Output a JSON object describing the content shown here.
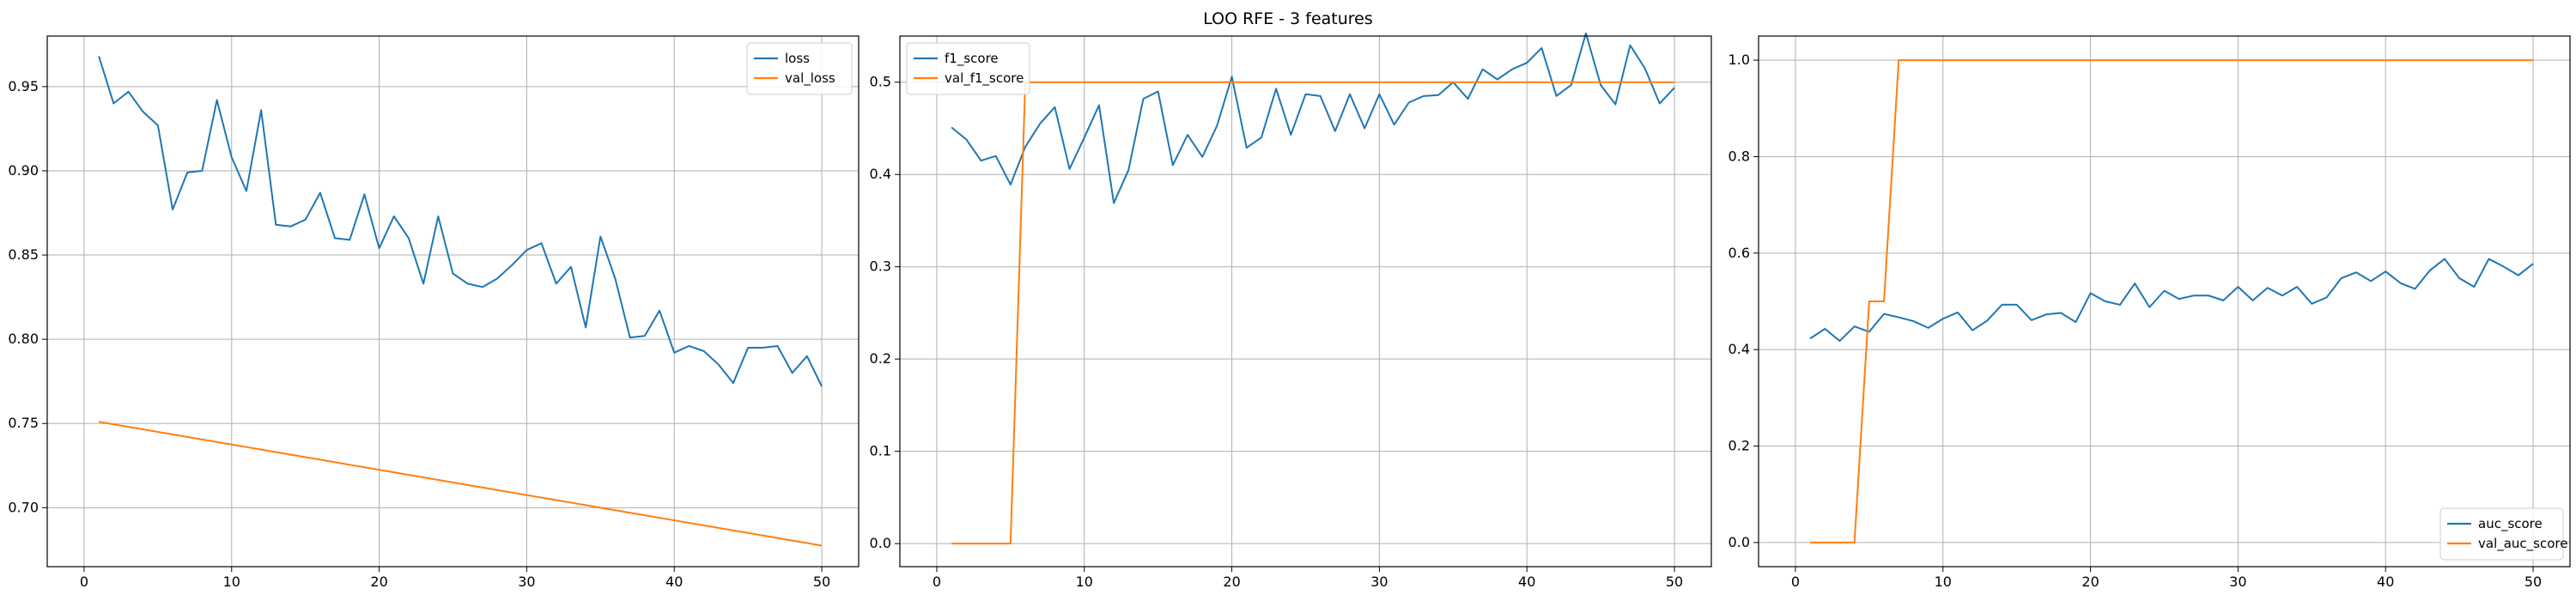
{
  "figure": {
    "title": "LOO RFE - 3 features"
  },
  "chart_data": [
    {
      "type": "line",
      "title": "",
      "xlabel": "",
      "ylabel": "",
      "xlim": [
        -2.5,
        52.5
      ],
      "ylim": [
        0.665,
        0.98
      ],
      "xticks": [
        0,
        10,
        20,
        30,
        40,
        50
      ],
      "yticks": [
        0.7,
        0.75,
        0.8,
        0.85,
        0.9,
        0.95
      ],
      "ytick_labels": [
        "0.70",
        "0.75",
        "0.80",
        "0.85",
        "0.90",
        "0.95"
      ],
      "grid": true,
      "legend_position": "top-right",
      "x": [
        1,
        2,
        3,
        4,
        5,
        6,
        7,
        8,
        9,
        10,
        11,
        12,
        13,
        14,
        15,
        16,
        17,
        18,
        19,
        20,
        21,
        22,
        23,
        24,
        25,
        26,
        27,
        28,
        29,
        30,
        31,
        32,
        33,
        34,
        35,
        36,
        37,
        38,
        39,
        40,
        41,
        42,
        43,
        44,
        45,
        46,
        47,
        48,
        49,
        50
      ],
      "series": [
        {
          "name": "loss",
          "color": "#1f77b4",
          "values": [
            0.968,
            0.94,
            0.947,
            0.935,
            0.927,
            0.877,
            0.899,
            0.9,
            0.942,
            0.908,
            0.888,
            0.936,
            0.868,
            0.867,
            0.871,
            0.887,
            0.86,
            0.859,
            0.886,
            0.854,
            0.873,
            0.86,
            0.833,
            0.873,
            0.839,
            0.833,
            0.831,
            0.836,
            0.844,
            0.853,
            0.857,
            0.833,
            0.843,
            0.807,
            0.861,
            0.836,
            0.801,
            0.802,
            0.817,
            0.792,
            0.796,
            0.793,
            0.785,
            0.774,
            0.795,
            0.795,
            0.796,
            0.78,
            0.79,
            0.772
          ]
        },
        {
          "name": "val_loss",
          "color": "#ff7f0e",
          "values": [
            0.751,
            0.7495,
            0.748,
            0.7465,
            0.745,
            0.7435,
            0.742,
            0.7405,
            0.739,
            0.7375,
            0.736,
            0.7345,
            0.733,
            0.7315,
            0.73,
            0.7285,
            0.727,
            0.7255,
            0.724,
            0.7225,
            0.721,
            0.7195,
            0.718,
            0.7165,
            0.715,
            0.7135,
            0.712,
            0.7105,
            0.709,
            0.7075,
            0.706,
            0.7045,
            0.703,
            0.7015,
            0.7,
            0.6985,
            0.697,
            0.6955,
            0.694,
            0.6925,
            0.691,
            0.6895,
            0.688,
            0.6865,
            0.685,
            0.6835,
            0.682,
            0.6805,
            0.679,
            0.6775
          ]
        }
      ]
    },
    {
      "type": "line",
      "title": "",
      "xlabel": "",
      "ylabel": "",
      "xlim": [
        -2.5,
        52.5
      ],
      "ylim": [
        -0.025,
        0.55
      ],
      "xticks": [
        0,
        10,
        20,
        30,
        40,
        50
      ],
      "yticks": [
        0.0,
        0.1,
        0.2,
        0.3,
        0.4,
        0.5
      ],
      "ytick_labels": [
        "0.0",
        "0.1",
        "0.2",
        "0.3",
        "0.4",
        "0.5"
      ],
      "grid": true,
      "legend_position": "top-left",
      "x": [
        1,
        2,
        3,
        4,
        5,
        6,
        7,
        8,
        9,
        10,
        11,
        12,
        13,
        14,
        15,
        16,
        17,
        18,
        19,
        20,
        21,
        22,
        23,
        24,
        25,
        26,
        27,
        28,
        29,
        30,
        31,
        32,
        33,
        34,
        35,
        36,
        37,
        38,
        39,
        40,
        41,
        42,
        43,
        44,
        45,
        46,
        47,
        48,
        49,
        50
      ],
      "series": [
        {
          "name": "f1_score",
          "color": "#1f77b4",
          "values": [
            0.451,
            0.438,
            0.415,
            0.42,
            0.389,
            0.43,
            0.455,
            0.473,
            0.406,
            0.44,
            0.475,
            0.369,
            0.405,
            0.482,
            0.49,
            0.41,
            0.443,
            0.419,
            0.453,
            0.506,
            0.429,
            0.44,
            0.493,
            0.443,
            0.487,
            0.485,
            0.447,
            0.487,
            0.45,
            0.487,
            0.454,
            0.478,
            0.485,
            0.486,
            0.5,
            0.482,
            0.514,
            0.503,
            0.514,
            0.521,
            0.537,
            0.485,
            0.497,
            0.553,
            0.497,
            0.476,
            0.54,
            0.515,
            0.477,
            0.494
          ]
        },
        {
          "name": "val_f1_score",
          "color": "#ff7f0e",
          "values": [
            0,
            0,
            0,
            0,
            0,
            0.5,
            0.5,
            0.5,
            0.5,
            0.5,
            0.5,
            0.5,
            0.5,
            0.5,
            0.5,
            0.5,
            0.5,
            0.5,
            0.5,
            0.5,
            0.5,
            0.5,
            0.5,
            0.5,
            0.5,
            0.5,
            0.5,
            0.5,
            0.5,
            0.5,
            0.5,
            0.5,
            0.5,
            0.5,
            0.5,
            0.5,
            0.5,
            0.5,
            0.5,
            0.5,
            0.5,
            0.5,
            0.5,
            0.5,
            0.5,
            0.5,
            0.5,
            0.5,
            0.5,
            0.5
          ]
        }
      ]
    },
    {
      "type": "line",
      "title": "",
      "xlabel": "",
      "ylabel": "",
      "xlim": [
        -2.5,
        52.5
      ],
      "ylim": [
        -0.05,
        1.05
      ],
      "xticks": [
        0,
        10,
        20,
        30,
        40,
        50
      ],
      "yticks": [
        0.0,
        0.2,
        0.4,
        0.6,
        0.8,
        1.0
      ],
      "ytick_labels": [
        "0.0",
        "0.2",
        "0.4",
        "0.6",
        "0.8",
        "1.0"
      ],
      "grid": true,
      "legend_position": "bottom-right",
      "x": [
        1,
        2,
        3,
        4,
        5,
        6,
        7,
        8,
        9,
        10,
        11,
        12,
        13,
        14,
        15,
        16,
        17,
        18,
        19,
        20,
        21,
        22,
        23,
        24,
        25,
        26,
        27,
        28,
        29,
        30,
        31,
        32,
        33,
        34,
        35,
        36,
        37,
        38,
        39,
        40,
        41,
        42,
        43,
        44,
        45,
        46,
        47,
        48,
        49,
        50
      ],
      "series": [
        {
          "name": "auc_score",
          "color": "#1f77b4",
          "values": [
            0.423,
            0.443,
            0.418,
            0.448,
            0.437,
            0.474,
            0.467,
            0.459,
            0.445,
            0.464,
            0.477,
            0.44,
            0.46,
            0.493,
            0.493,
            0.461,
            0.473,
            0.476,
            0.457,
            0.517,
            0.5,
            0.493,
            0.537,
            0.488,
            0.522,
            0.505,
            0.512,
            0.512,
            0.502,
            0.53,
            0.502,
            0.528,
            0.512,
            0.53,
            0.495,
            0.508,
            0.548,
            0.56,
            0.542,
            0.562,
            0.538,
            0.526,
            0.564,
            0.588,
            0.548,
            0.53,
            0.588,
            0.572,
            0.554,
            0.578
          ]
        },
        {
          "name": "val_auc_score",
          "color": "#ff7f0e",
          "values": [
            0,
            0,
            0,
            0,
            0.5,
            0.5,
            1,
            1,
            1,
            1,
            1,
            1,
            1,
            1,
            1,
            1,
            1,
            1,
            1,
            1,
            1,
            1,
            1,
            1,
            1,
            1,
            1,
            1,
            1,
            1,
            1,
            1,
            1,
            1,
            1,
            1,
            1,
            1,
            1,
            1,
            1,
            1,
            1,
            1,
            1,
            1,
            1,
            1,
            1,
            1
          ]
        }
      ]
    }
  ]
}
